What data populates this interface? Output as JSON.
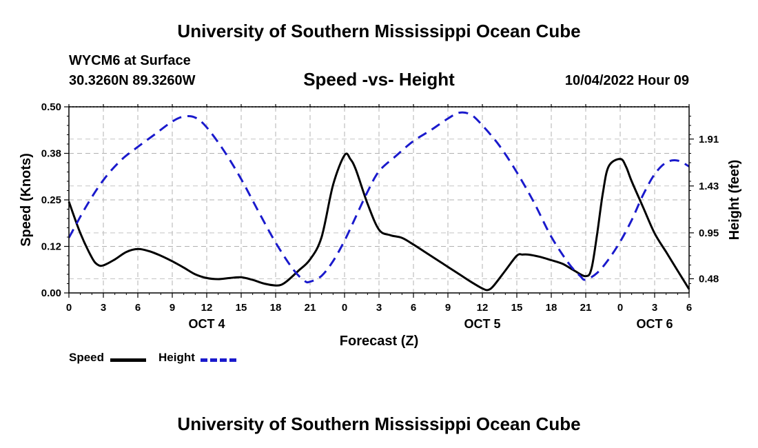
{
  "header": {
    "title": "University of Southern Mississippi Ocean Cube",
    "station": "WYCM6 at Surface",
    "coordinates": "30.3260N  89.3260W",
    "subtitle": "Speed -vs- Height",
    "datetime": "10/04/2022 Hour 09"
  },
  "footer": {
    "title": "University of Southern Mississippi Ocean Cube"
  },
  "chart_data": {
    "type": "line",
    "xlabel": "Forecast (Z)",
    "ylabel_left": "Speed (Knots)",
    "ylabel_right": "Height (feet)",
    "x_range": [
      0,
      54
    ],
    "x_ticks": [
      {
        "x": 0,
        "label": "0"
      },
      {
        "x": 3,
        "label": "3"
      },
      {
        "x": 6,
        "label": "6"
      },
      {
        "x": 9,
        "label": "9"
      },
      {
        "x": 12,
        "label": "12"
      },
      {
        "x": 15,
        "label": "15"
      },
      {
        "x": 18,
        "label": "18"
      },
      {
        "x": 21,
        "label": "21"
      },
      {
        "x": 24,
        "label": "0"
      },
      {
        "x": 27,
        "label": "3"
      },
      {
        "x": 30,
        "label": "6"
      },
      {
        "x": 33,
        "label": "9"
      },
      {
        "x": 36,
        "label": "12"
      },
      {
        "x": 39,
        "label": "15"
      },
      {
        "x": 42,
        "label": "18"
      },
      {
        "x": 45,
        "label": "21"
      },
      {
        "x": 48,
        "label": "0"
      },
      {
        "x": 51,
        "label": "3"
      },
      {
        "x": 54,
        "label": "6"
      }
    ],
    "day_labels": [
      {
        "x": 12,
        "label": "OCT 4"
      },
      {
        "x": 36,
        "label": "OCT 5"
      },
      {
        "x": 51,
        "label": "OCT 6"
      }
    ],
    "y_left": {
      "range": [
        0,
        0.5
      ],
      "ticks": [
        0.0,
        0.125,
        0.25,
        0.375,
        0.5
      ],
      "tick_labels": [
        "0.00",
        "0.12",
        "0.25",
        "0.38",
        "0.50"
      ]
    },
    "y_right": {
      "range": [
        0.335,
        2.24
      ],
      "ticks": [
        0.48,
        0.95,
        1.43,
        1.91
      ],
      "tick_labels": [
        "0.48",
        "0.95",
        "1.43",
        "1.91"
      ]
    },
    "grid": true,
    "series": [
      {
        "name": "Speed",
        "axis": "left",
        "color": "#000000",
        "dash": "solid",
        "points": [
          [
            0,
            0.245
          ],
          [
            1,
            0.16
          ],
          [
            2,
            0.095
          ],
          [
            2.5,
            0.076
          ],
          [
            3,
            0.074
          ],
          [
            4,
            0.09
          ],
          [
            5,
            0.11
          ],
          [
            6,
            0.118
          ],
          [
            7,
            0.112
          ],
          [
            8,
            0.1
          ],
          [
            9,
            0.085
          ],
          [
            10,
            0.068
          ],
          [
            11,
            0.05
          ],
          [
            12,
            0.04
          ],
          [
            13,
            0.037
          ],
          [
            14,
            0.04
          ],
          [
            15,
            0.042
          ],
          [
            16,
            0.035
          ],
          [
            17,
            0.025
          ],
          [
            18,
            0.02
          ],
          [
            18.5,
            0.022
          ],
          [
            19,
            0.032
          ],
          [
            20,
            0.06
          ],
          [
            21,
            0.09
          ],
          [
            22,
            0.15
          ],
          [
            23,
            0.29
          ],
          [
            24,
            0.37
          ],
          [
            24.5,
            0.36
          ],
          [
            25,
            0.33
          ],
          [
            26,
            0.24
          ],
          [
            27,
            0.17
          ],
          [
            28,
            0.155
          ],
          [
            29,
            0.148
          ],
          [
            30,
            0.13
          ],
          [
            31,
            0.11
          ],
          [
            32,
            0.09
          ],
          [
            33,
            0.07
          ],
          [
            34,
            0.05
          ],
          [
            35,
            0.03
          ],
          [
            36,
            0.012
          ],
          [
            36.5,
            0.008
          ],
          [
            37,
            0.02
          ],
          [
            38,
            0.06
          ],
          [
            39,
            0.1
          ],
          [
            39.5,
            0.103
          ],
          [
            40,
            0.103
          ],
          [
            41,
            0.097
          ],
          [
            42,
            0.088
          ],
          [
            43,
            0.078
          ],
          [
            44,
            0.06
          ],
          [
            45,
            0.045
          ],
          [
            45.5,
            0.065
          ],
          [
            46,
            0.16
          ],
          [
            46.5,
            0.27
          ],
          [
            47,
            0.34
          ],
          [
            48,
            0.36
          ],
          [
            48.5,
            0.34
          ],
          [
            49,
            0.3
          ],
          [
            50,
            0.23
          ],
          [
            51,
            0.16
          ],
          [
            52,
            0.11
          ],
          [
            53,
            0.06
          ],
          [
            54,
            0.01
          ]
        ]
      },
      {
        "name": "Height",
        "axis": "right",
        "color": "#1a1acc",
        "dash": "dashed",
        "points": [
          [
            0,
            0.9
          ],
          [
            1.5,
            1.22
          ],
          [
            3,
            1.49
          ],
          [
            4.5,
            1.69
          ],
          [
            6,
            1.83
          ],
          [
            7.5,
            1.96
          ],
          [
            9,
            2.09
          ],
          [
            10,
            2.14
          ],
          [
            11,
            2.13
          ],
          [
            12,
            2.03
          ],
          [
            13.5,
            1.79
          ],
          [
            15,
            1.5
          ],
          [
            16.5,
            1.17
          ],
          [
            18,
            0.85
          ],
          [
            19.5,
            0.58
          ],
          [
            20.5,
            0.46
          ],
          [
            21,
            0.45
          ],
          [
            22,
            0.51
          ],
          [
            23,
            0.66
          ],
          [
            24,
            0.87
          ],
          [
            25,
            1.12
          ],
          [
            26,
            1.37
          ],
          [
            27,
            1.58
          ],
          [
            28.5,
            1.74
          ],
          [
            30,
            1.89
          ],
          [
            31.5,
            2.0
          ],
          [
            33,
            2.12
          ],
          [
            34,
            2.18
          ],
          [
            35,
            2.16
          ],
          [
            36,
            2.05
          ],
          [
            37.5,
            1.84
          ],
          [
            39,
            1.57
          ],
          [
            40.5,
            1.26
          ],
          [
            42,
            0.91
          ],
          [
            43.5,
            0.64
          ],
          [
            44.5,
            0.51
          ],
          [
            45,
            0.47
          ],
          [
            46,
            0.54
          ],
          [
            47,
            0.68
          ],
          [
            48,
            0.86
          ],
          [
            49,
            1.08
          ],
          [
            50,
            1.34
          ],
          [
            51,
            1.55
          ],
          [
            52,
            1.67
          ],
          [
            53,
            1.69
          ],
          [
            54,
            1.63
          ]
        ]
      }
    ],
    "legend": [
      {
        "label": "Speed",
        "color": "#000000",
        "dash": "solid"
      },
      {
        "label": "Height",
        "color": "#1a1acc",
        "dash": "dashed"
      }
    ]
  }
}
